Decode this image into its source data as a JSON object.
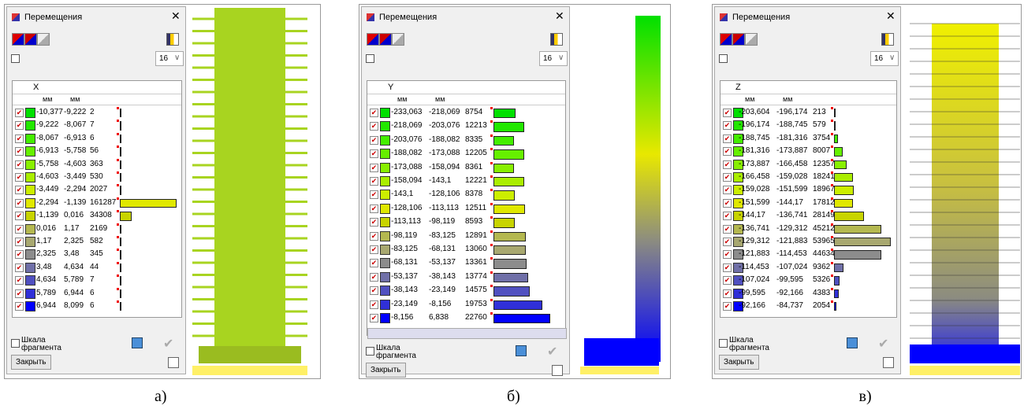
{
  "scale_colors": [
    "#00e000",
    "#22e800",
    "#44ee00",
    "#66f000",
    "#88f000",
    "#aaee00",
    "#ccee00",
    "#e0e800",
    "#c8d400",
    "#b4b850",
    "#a8a870",
    "#8c8c8c",
    "#7070a8",
    "#5050c0",
    "#3030d8",
    "#0000ff"
  ],
  "panels": [
    {
      "caption": "а)",
      "title": "Перемещения",
      "levels": "16",
      "component": "X",
      "units": [
        "мм",
        "мм"
      ],
      "scale_label": [
        "Шкала",
        "фрагмента"
      ],
      "close_button": "Закрыть",
      "rows": [
        [
          "-10,377",
          "-9,222",
          2
        ],
        [
          "-9,222",
          "-8,067",
          7
        ],
        [
          "-8,067",
          "-6,913",
          6
        ],
        [
          "-6,913",
          "-5,758",
          56
        ],
        [
          "-5,758",
          "-4,603",
          363
        ],
        [
          "-4,603",
          "-3,449",
          530
        ],
        [
          "-3,449",
          "-2,294",
          2027
        ],
        [
          "-2,294",
          "-1,139",
          161287
        ],
        [
          "-1,139",
          "0,016",
          34308
        ],
        [
          "0,016",
          "1,17",
          2169
        ],
        [
          "1,17",
          "2,325",
          582
        ],
        [
          "2,325",
          "3,48",
          345
        ],
        [
          "3,48",
          "4,634",
          44
        ],
        [
          "4,634",
          "5,789",
          7
        ],
        [
          "5,789",
          "6,944",
          6
        ],
        [
          "6,944",
          "8,099",
          6
        ]
      ]
    },
    {
      "caption": "б)",
      "title": "Перемещения",
      "levels": "16",
      "component": "Y",
      "units": [
        "мм",
        "мм"
      ],
      "scale_label": [
        "Шкала",
        "фрагмента"
      ],
      "close_button": "Закрыть",
      "rows": [
        [
          "-233,063",
          "-218,069",
          8754
        ],
        [
          "-218,069",
          "-203,076",
          12213
        ],
        [
          "-203,076",
          "-188,082",
          8335
        ],
        [
          "-188,082",
          "-173,088",
          12205
        ],
        [
          "-173,088",
          "-158,094",
          8361
        ],
        [
          "-158,094",
          "-143,1",
          12221
        ],
        [
          "-143,1",
          "-128,106",
          8378
        ],
        [
          "-128,106",
          "-113,113",
          12511
        ],
        [
          "-113,113",
          "-98,119",
          8593
        ],
        [
          "-98,119",
          "-83,125",
          12891
        ],
        [
          "-83,125",
          "-68,131",
          13060
        ],
        [
          "-68,131",
          "-53,137",
          13361
        ],
        [
          "-53,137",
          "-38,143",
          13774
        ],
        [
          "-38,143",
          "-23,149",
          14575
        ],
        [
          "-23,149",
          "-8,156",
          19753
        ],
        [
          "-8,156",
          "6,838",
          22760
        ]
      ]
    },
    {
      "caption": "в)",
      "title": "Перемещения",
      "levels": "16",
      "component": "Z",
      "units": [
        "мм",
        "мм"
      ],
      "scale_label": [
        "Шкала",
        "фрагмента"
      ],
      "close_button": "Закрыть",
      "rows": [
        [
          "-203,604",
          "-196,174",
          213
        ],
        [
          "-196,174",
          "-188,745",
          579
        ],
        [
          "-188,745",
          "-181,316",
          3754
        ],
        [
          "-181,316",
          "-173,887",
          8007
        ],
        [
          "-173,887",
          "-166,458",
          12357
        ],
        [
          "-166,458",
          "-159,028",
          18241
        ],
        [
          "-159,028",
          "-151,599",
          18967
        ],
        [
          "-151,599",
          "-144,17",
          17812
        ],
        [
          "-144,17",
          "-136,741",
          28149
        ],
        [
          "-136,741",
          "-129,312",
          45212
        ],
        [
          "-129,312",
          "-121,883",
          53965
        ],
        [
          "-121,883",
          "-114,453",
          44634
        ],
        [
          "-114,453",
          "-107,024",
          9362
        ],
        [
          "-107,024",
          "-99,595",
          5326
        ],
        [
          "-99,595",
          "-92,166",
          4383
        ],
        [
          "-92,166",
          "-84,737",
          2054
        ]
      ]
    }
  ]
}
